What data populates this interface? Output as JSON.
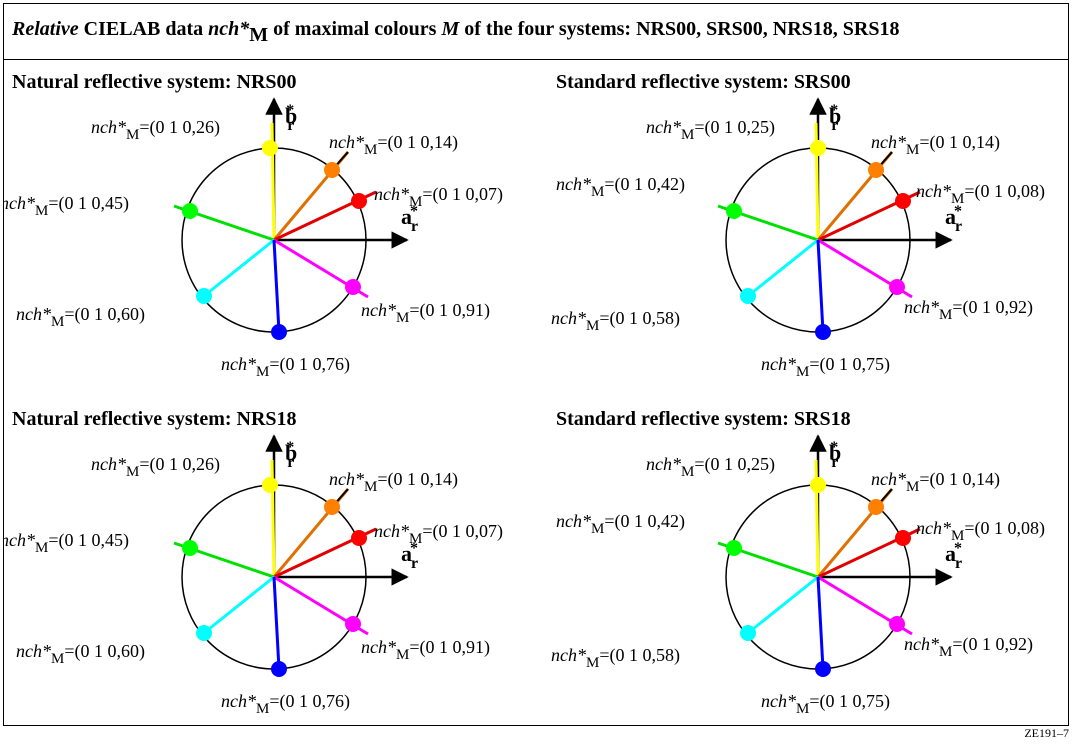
{
  "title": {
    "part1": "Relative",
    "part2": " CIELAB data ",
    "part3": "nch*",
    "part4": "M",
    "part5": " of maximal colours ",
    "part6": "M",
    "part7": " of the four systems: NRS00, SRS00, NRS18, SRS18"
  },
  "code": "ZE191–7",
  "label_prefix": "nch*",
  "label_sub": "M",
  "axes": {
    "b": "b",
    "a": "a",
    "star": "*",
    "sub": "r"
  },
  "colors": {
    "yellow": "#ffff00",
    "orange": "#ff8000",
    "red": "#ff0000",
    "green": "#00ff00",
    "cyan": "#00ffff",
    "blue": "#0000ff",
    "magenta": "#ff00ff",
    "orange_stroke": "#e07000",
    "red_stroke": "#e00000",
    "green_stroke": "#00e000",
    "blue_stroke": "#0000ff",
    "magenta_stroke": "#ff00ff",
    "yellow_stroke": "#ffff00",
    "cyan_stroke": "#00ffff"
  },
  "panels": [
    {
      "name": "Natural reflective system: NRS00",
      "labels": [
        "=(0 1 0,26)",
        "=(0 1 0,14)",
        "=(0 1 0,07)",
        "=(0 1 0,45)",
        "=(0 1 0,60)",
        "=(0 1 0,91)",
        "=(0 1 0,76)"
      ]
    },
    {
      "name": "Standard reflective system: SRS00",
      "labels": [
        "=(0 1 0,25)",
        "=(0 1 0,14)",
        "=(0 1 0,08)",
        "=(0 1 0,42)",
        "=(0 1 0,58)",
        "=(0 1 0,92)",
        "=(0 1 0,75)"
      ]
    },
    {
      "name": "Natural reflective system: NRS18",
      "labels": [
        "=(0 1 0,26)",
        "=(0 1 0,14)",
        "=(0 1 0,07)",
        "=(0 1 0,45)",
        "=(0 1 0,60)",
        "=(0 1 0,91)",
        "=(0 1 0,76)"
      ]
    },
    {
      "name": "Standard reflective system: SRS18",
      "labels": [
        "=(0 1 0,25)",
        "=(0 1 0,14)",
        "=(0 1 0,08)",
        "=(0 1 0,42)",
        "=(0 1 0,58)",
        "=(0 1 0,92)",
        "=(0 1 0,75)"
      ]
    }
  ]
}
